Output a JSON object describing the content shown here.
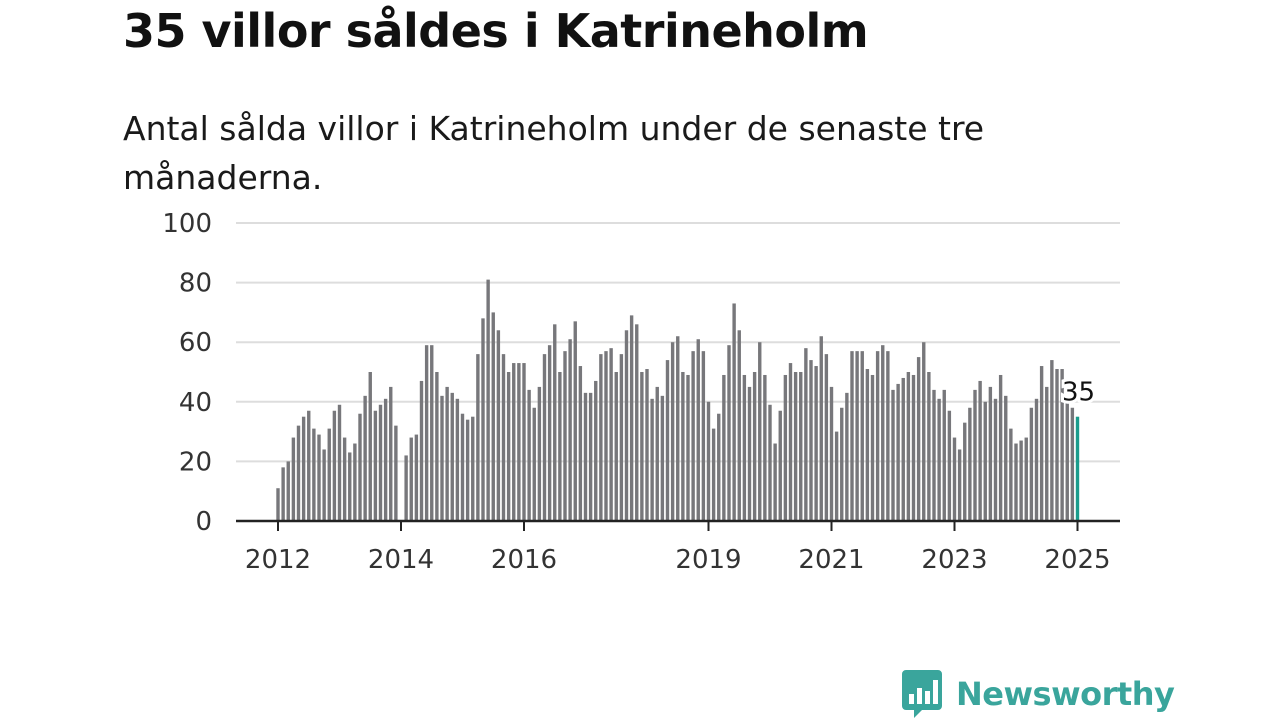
{
  "page": {
    "title": "35 villor såldes i Katrineholm",
    "subtitle": "Antal sålda villor i Katrineholm under de senaste tre månaderna."
  },
  "brand": {
    "name": "Newsworthy",
    "logo_icon": "bar-chart-speech-bubble-icon",
    "color": "#3aa59c"
  },
  "chart_data": {
    "type": "bar",
    "title": "35 villor såldes i Katrineholm",
    "subtitle": "Antal sålda villor i Katrineholm under de senaste tre månaderna.",
    "xlabel": "",
    "ylabel": "",
    "ylim": [
      0,
      100
    ],
    "yticks": [
      0,
      20,
      40,
      60,
      80,
      100
    ],
    "xticks": [
      {
        "label": "2012",
        "index": 0
      },
      {
        "label": "2014",
        "index": 24
      },
      {
        "label": "2016",
        "index": 48
      },
      {
        "label": "2019",
        "index": 84
      },
      {
        "label": "2021",
        "index": 108
      },
      {
        "label": "2023",
        "index": 132
      },
      {
        "label": "2025",
        "index": 156
      }
    ],
    "grid": "horizontal",
    "bar_color": "#77777b",
    "highlight_color": "#1a9c8c",
    "highlight_label": "35",
    "start_month": "2012-01",
    "values": [
      11,
      18,
      20,
      28,
      32,
      35,
      37,
      31,
      29,
      24,
      31,
      37,
      39,
      28,
      23,
      26,
      36,
      42,
      50,
      37,
      39,
      41,
      45,
      32,
      0,
      22,
      28,
      29,
      47,
      59,
      59,
      50,
      42,
      45,
      43,
      41,
      36,
      34,
      35,
      56,
      68,
      81,
      70,
      64,
      56,
      50,
      53,
      53,
      53,
      44,
      38,
      45,
      56,
      59,
      66,
      50,
      57,
      61,
      67,
      52,
      43,
      43,
      47,
      56,
      57,
      58,
      50,
      56,
      64,
      69,
      66,
      50,
      51,
      41,
      45,
      42,
      54,
      60,
      62,
      50,
      49,
      57,
      61,
      57,
      40,
      31,
      36,
      49,
      59,
      73,
      64,
      49,
      45,
      50,
      60,
      49,
      39,
      26,
      37,
      49,
      53,
      50,
      50,
      58,
      54,
      52,
      62,
      56,
      45,
      30,
      38,
      43,
      57,
      57,
      57,
      51,
      49,
      57,
      59,
      57,
      44,
      46,
      48,
      50,
      49,
      55,
      60,
      50,
      44,
      41,
      44,
      37,
      28,
      24,
      33,
      38,
      44,
      47,
      40,
      45,
      41,
      49,
      42,
      31,
      26,
      27,
      28,
      38,
      41,
      52,
      45,
      54,
      51,
      51,
      40,
      38,
      35
    ]
  }
}
